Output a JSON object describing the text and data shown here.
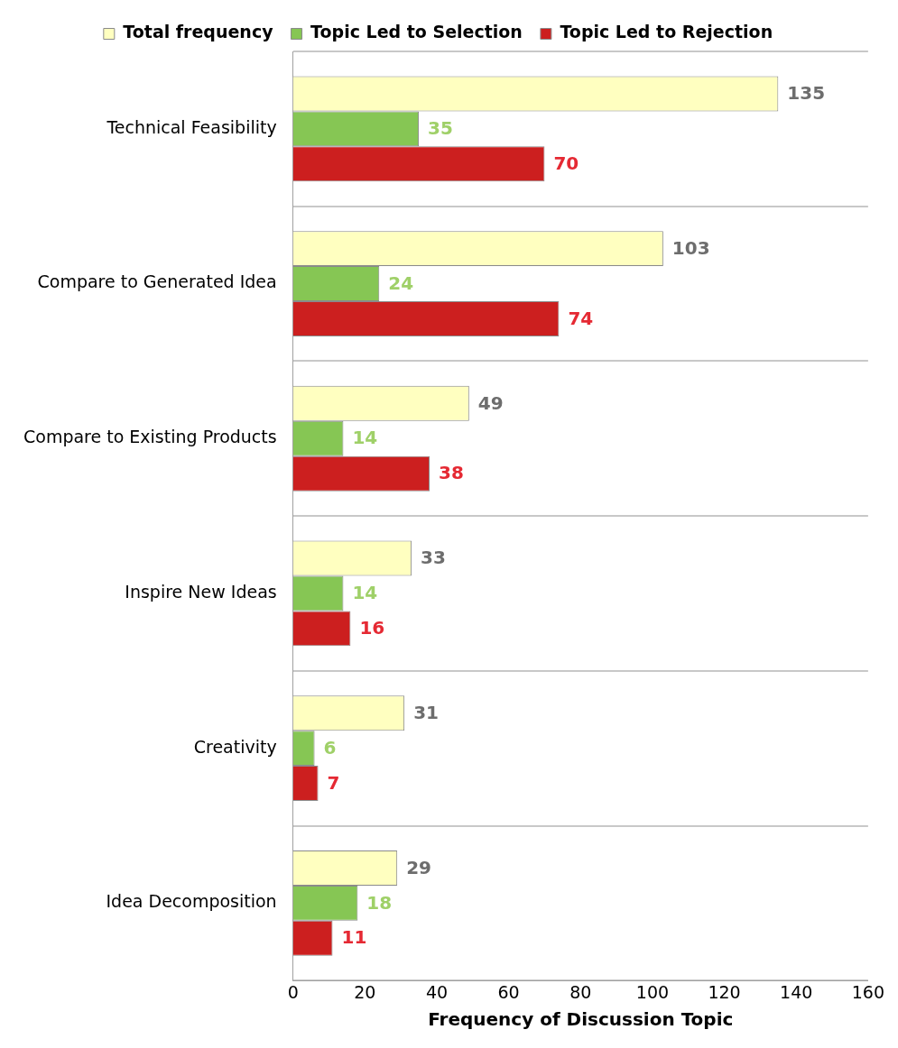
{
  "chart_data": {
    "type": "bar",
    "orientation": "horizontal",
    "xlabel": "Frequency of Discussion Topic",
    "categories": [
      "Technical Feasibility",
      "Compare to Generated Idea",
      "Compare to Existing Products",
      "Inspire New Ideas",
      "Creativity",
      "Idea Decomposition"
    ],
    "series": [
      {
        "name": "Total frequency",
        "color": "#ffffc0",
        "values": [
          135,
          103,
          49,
          33,
          31,
          29
        ]
      },
      {
        "name": "Topic Led to Selection",
        "color": "#86c654",
        "values": [
          35,
          24,
          14,
          14,
          6,
          18
        ]
      },
      {
        "name": "Topic Led to Rejection",
        "color": "#cc1f1f",
        "values": [
          70,
          74,
          38,
          16,
          7,
          11
        ]
      }
    ],
    "xlim": [
      0,
      160
    ],
    "xticks": [
      0,
      20,
      40,
      60,
      80,
      100,
      120,
      140,
      160
    ],
    "data_labels": true,
    "grid": "y",
    "legend": "top"
  }
}
